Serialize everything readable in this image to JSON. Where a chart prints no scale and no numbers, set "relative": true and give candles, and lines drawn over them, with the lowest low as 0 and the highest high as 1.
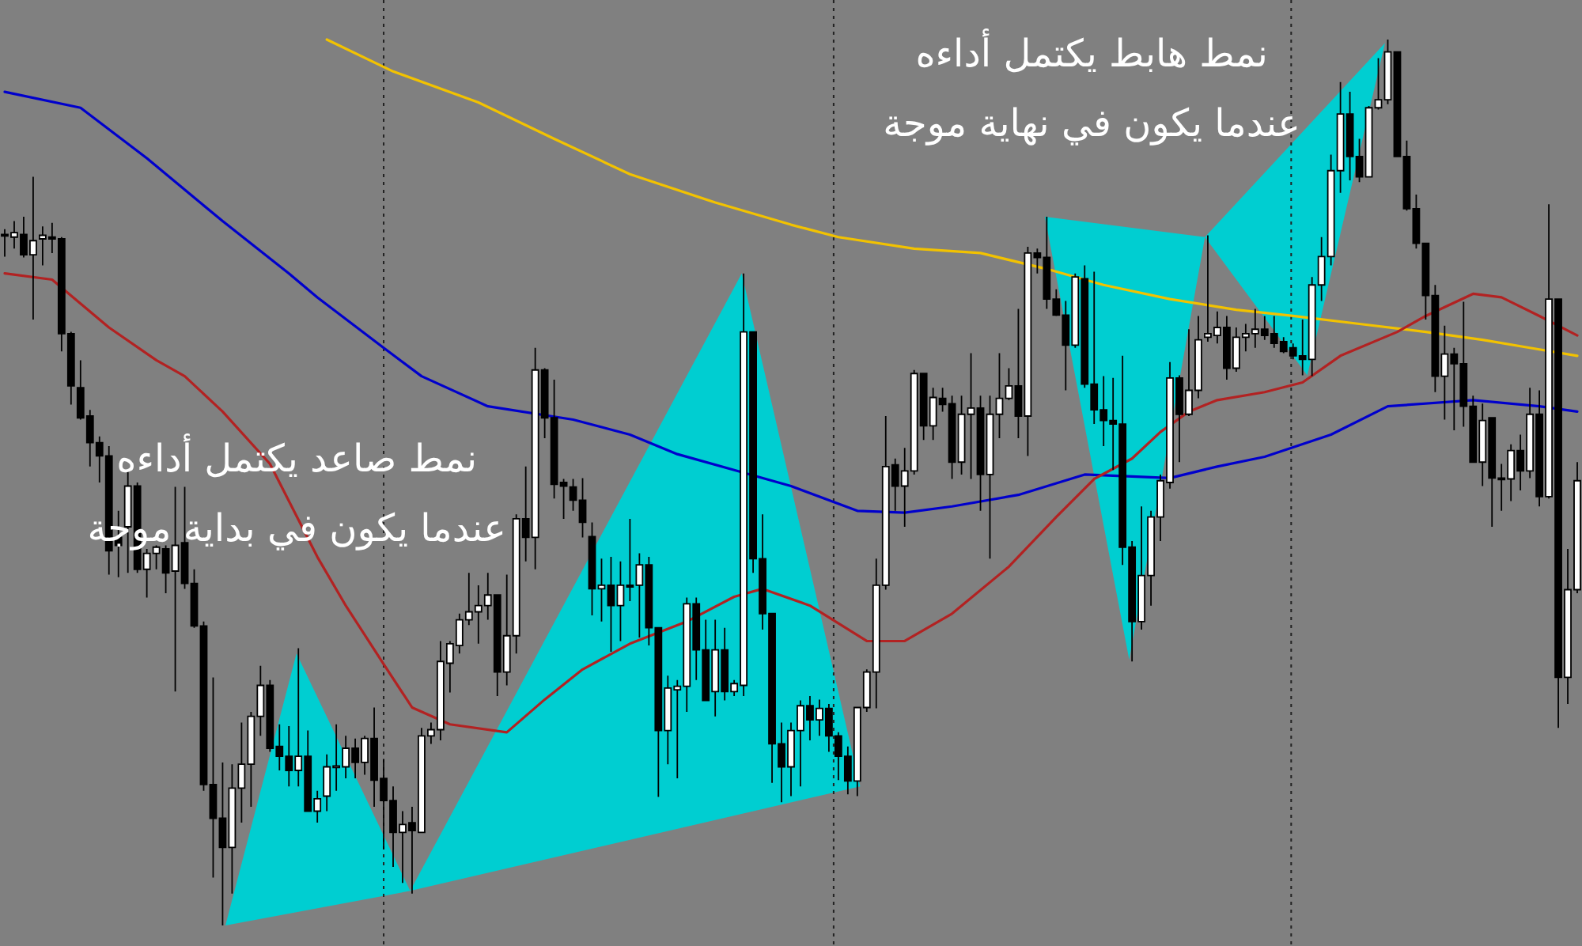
{
  "chart_data": {
    "type": "candlestick",
    "relative": true,
    "categories": [
      null,
      null,
      null,
      null,
      null,
      null,
      null,
      null,
      null,
      null,
      null,
      null,
      null,
      null,
      null,
      null,
      null,
      null,
      null,
      null,
      null,
      null,
      null,
      null,
      null,
      null,
      null,
      null,
      null,
      null,
      null,
      null,
      null,
      null,
      null,
      null,
      null,
      null,
      null,
      null,
      null,
      null,
      null,
      null,
      null,
      null,
      null,
      null,
      null,
      null,
      null,
      null,
      null,
      null,
      null,
      null,
      null,
      null,
      null,
      null,
      null,
      null,
      null,
      null,
      null,
      null,
      null,
      null,
      null,
      null,
      null,
      null,
      null,
      null,
      null,
      null,
      null,
      null,
      null,
      null,
      null,
      null,
      null,
      null,
      null,
      null,
      null,
      null,
      null,
      null,
      null,
      null,
      null,
      null,
      null,
      null,
      null,
      null,
      null,
      null,
      null,
      null,
      null,
      null,
      null,
      null,
      null,
      null,
      null,
      null,
      null,
      null,
      null,
      null,
      null,
      null,
      null,
      null,
      null,
      null,
      null,
      null,
      null,
      null,
      null,
      null,
      null,
      null,
      null,
      null,
      null,
      null,
      null,
      null,
      null,
      null,
      null,
      null,
      null,
      null,
      null,
      null,
      null,
      null,
      null,
      null,
      null,
      null,
      null,
      null,
      null,
      null,
      null,
      null,
      null,
      null,
      null,
      null,
      null,
      null,
      null,
      null,
      null,
      null,
      null,
      null,
      null
    ],
    "ohlc": [
      [
        0.78,
        0.786,
        0.755,
        0.779
      ],
      [
        0.777,
        0.795,
        0.764,
        0.782
      ],
      [
        0.78,
        0.8,
        0.754,
        0.757
      ],
      [
        0.757,
        0.845,
        0.684,
        0.773
      ],
      [
        0.775,
        0.789,
        0.745,
        0.779
      ],
      [
        0.777,
        0.793,
        0.759,
        0.775
      ],
      [
        0.775,
        0.777,
        0.648,
        0.668
      ],
      [
        0.668,
        0.67,
        0.588,
        0.609
      ],
      [
        0.607,
        0.638,
        0.571,
        0.573
      ],
      [
        0.575,
        0.582,
        0.518,
        0.545
      ],
      [
        0.545,
        0.552,
        0.5,
        0.53
      ],
      [
        0.53,
        0.541,
        0.396,
        0.423
      ],
      [
        0.438,
        0.468,
        0.393,
        0.429
      ],
      [
        0.45,
        0.514,
        0.398,
        0.496
      ],
      [
        0.496,
        0.5,
        0.398,
        0.402
      ],
      [
        0.402,
        0.425,
        0.37,
        0.42
      ],
      [
        0.42,
        0.429,
        0.402,
        0.427
      ],
      [
        0.425,
        0.429,
        0.375,
        0.398
      ],
      [
        0.4,
        0.495,
        0.264,
        0.429
      ],
      [
        0.432,
        0.495,
        0.38,
        0.386
      ],
      [
        0.386,
        0.402,
        0.336,
        0.338
      ],
      [
        0.338,
        0.343,
        0.152,
        0.159
      ],
      [
        0.159,
        0.28,
        0.054,
        0.121
      ],
      [
        0.121,
        0.184,
        0,
        0.088
      ],
      [
        0.088,
        0.182,
        0.036,
        0.155
      ],
      [
        0.155,
        0.229,
        0.116,
        0.182
      ],
      [
        0.182,
        0.241,
        0.134,
        0.236
      ],
      [
        0.236,
        0.293,
        0.214,
        0.271
      ],
      [
        0.271,
        0.277,
        0.196,
        0.2
      ],
      [
        0.202,
        0.227,
        0.175,
        0.191
      ],
      [
        0.191,
        0.225,
        0.157,
        0.175
      ],
      [
        0.175,
        0.313,
        0.157,
        0.191
      ],
      [
        0.191,
        0.22,
        0.129,
        0.129
      ],
      [
        0.129,
        0.152,
        0.116,
        0.143
      ],
      [
        0.146,
        0.193,
        0.129,
        0.179
      ],
      [
        0.179,
        0.227,
        0.152,
        0.18
      ],
      [
        0.179,
        0.214,
        0.166,
        0.2
      ],
      [
        0.2,
        0.211,
        0.166,
        0.184
      ],
      [
        0.184,
        0.214,
        0.17,
        0.211
      ],
      [
        0.211,
        0.246,
        0.134,
        0.164
      ],
      [
        0.166,
        0.188,
        0.086,
        0.141
      ],
      [
        0.141,
        0.157,
        0.066,
        0.105
      ],
      [
        0.105,
        0.129,
        0.048,
        0.114
      ],
      [
        0.116,
        0.134,
        0.036,
        0.107
      ],
      [
        0.105,
        0.223,
        0.105,
        0.214
      ],
      [
        0.214,
        0.229,
        0.205,
        0.221
      ],
      [
        0.221,
        0.321,
        0.209,
        0.298
      ],
      [
        0.296,
        0.321,
        0.263,
        0.318
      ],
      [
        0.316,
        0.352,
        0.307,
        0.345
      ],
      [
        0.345,
        0.398,
        0.339,
        0.354
      ],
      [
        0.354,
        0.384,
        0.318,
        0.361
      ],
      [
        0.361,
        0.398,
        0.345,
        0.373
      ],
      [
        0.373,
        0.373,
        0.259,
        0.286
      ],
      [
        0.286,
        0.396,
        0.271,
        0.327
      ],
      [
        0.327,
        0.464,
        0.307,
        0.459
      ],
      [
        0.459,
        0.518,
        0.411,
        0.438
      ],
      [
        0.438,
        0.652,
        0.402,
        0.627
      ],
      [
        0.627,
        0.629,
        0.55,
        0.573
      ],
      [
        0.573,
        0.616,
        0.482,
        0.498
      ],
      [
        0.5,
        0.504,
        0.459,
        0.496
      ],
      [
        0.495,
        0.504,
        0.468,
        0.48
      ],
      [
        0.48,
        0.505,
        0.438,
        0.455
      ],
      [
        0.439,
        0.455,
        0.35,
        0.38
      ],
      [
        0.38,
        0.414,
        0.343,
        0.384
      ],
      [
        0.384,
        0.416,
        0.309,
        0.361
      ],
      [
        0.361,
        0.411,
        0.321,
        0.384
      ],
      [
        0.384,
        0.459,
        0.366,
        0.382
      ],
      [
        0.384,
        0.42,
        0.325,
        0.407
      ],
      [
        0.407,
        0.416,
        0.316,
        0.336
      ],
      [
        0.336,
        0.336,
        0.145,
        0.22
      ],
      [
        0.22,
        0.282,
        0.182,
        0.268
      ],
      [
        0.266,
        0.277,
        0.166,
        0.27
      ],
      [
        0.27,
        0.37,
        0.241,
        0.363
      ],
      [
        0.363,
        0.37,
        0.277,
        0.311
      ],
      [
        0.311,
        0.345,
        0.254,
        0.254
      ],
      [
        0.264,
        0.345,
        0.236,
        0.311
      ],
      [
        0.311,
        0.336,
        0.254,
        0.264
      ],
      [
        0.264,
        0.277,
        0.259,
        0.273
      ],
      [
        0.271,
        0.736,
        0.259,
        0.67
      ],
      [
        0.67,
        0.67,
        0.398,
        0.414
      ],
      [
        0.414,
        0.464,
        0.334,
        0.352
      ],
      [
        0.352,
        0.352,
        0.161,
        0.205
      ],
      [
        0.205,
        0.229,
        0.139,
        0.179
      ],
      [
        0.179,
        0.229,
        0.146,
        0.22
      ],
      [
        0.22,
        0.254,
        0.157,
        0.248
      ],
      [
        0.248,
        0.259,
        0.209,
        0.232
      ],
      [
        0.232,
        0.255,
        0.214,
        0.245
      ],
      [
        0.245,
        0.25,
        0.196,
        0.214
      ],
      [
        0.214,
        0.218,
        0.164,
        0.191
      ],
      [
        0.191,
        0.202,
        0.148,
        0.163
      ],
      [
        0.163,
        0.246,
        0.146,
        0.246
      ],
      [
        0.246,
        0.289,
        0.241,
        0.286
      ],
      [
        0.286,
        0.414,
        0.245,
        0.384
      ],
      [
        0.384,
        0.575,
        0.379,
        0.518
      ],
      [
        0.52,
        0.527,
        0.468,
        0.496
      ],
      [
        0.496,
        0.539,
        0.45,
        0.513
      ],
      [
        0.513,
        0.627,
        0.509,
        0.623
      ],
      [
        0.623,
        0.623,
        0.548,
        0.564
      ],
      [
        0.564,
        0.607,
        0.548,
        0.596
      ],
      [
        0.595,
        0.607,
        0.58,
        0.588
      ],
      [
        0.589,
        0.598,
        0.504,
        0.523
      ],
      [
        0.523,
        0.598,
        0.509,
        0.577
      ],
      [
        0.577,
        0.646,
        0.504,
        0.584
      ],
      [
        0.584,
        0.598,
        0.468,
        0.509
      ],
      [
        0.509,
        0.598,
        0.414,
        0.577
      ],
      [
        0.577,
        0.646,
        0.55,
        0.595
      ],
      [
        0.595,
        0.629,
        0.593,
        0.609
      ],
      [
        0.609,
        0.696,
        0.55,
        0.575
      ],
      [
        0.575,
        0.766,
        0.53,
        0.759
      ],
      [
        0.759,
        0.764,
        0.736,
        0.754
      ],
      [
        0.754,
        0.8,
        0.696,
        0.707
      ],
      [
        0.707,
        0.718,
        0.688,
        0.689
      ],
      [
        0.689,
        0.705,
        0.604,
        0.655
      ],
      [
        0.655,
        0.736,
        0.652,
        0.732
      ],
      [
        0.73,
        0.745,
        0.607,
        0.611
      ],
      [
        0.611,
        0.738,
        0.566,
        0.582
      ],
      [
        0.582,
        0.62,
        0.541,
        0.57
      ],
      [
        0.57,
        0.618,
        0.514,
        0.566
      ],
      [
        0.566,
        0.643,
        0.407,
        0.427
      ],
      [
        0.427,
        0.434,
        0.298,
        0.343
      ],
      [
        0.343,
        0.473,
        0.334,
        0.395
      ],
      [
        0.395,
        0.468,
        0.361,
        0.461
      ],
      [
        0.461,
        0.509,
        0.434,
        0.502
      ],
      [
        0.5,
        0.636,
        0.493,
        0.618
      ],
      [
        0.618,
        0.621,
        0.523,
        0.577
      ],
      [
        0.577,
        0.673,
        0.575,
        0.604
      ],
      [
        0.604,
        0.688,
        0.595,
        0.661
      ],
      [
        0.664,
        0.779,
        0.659,
        0.668
      ],
      [
        0.666,
        0.693,
        0.657,
        0.675
      ],
      [
        0.675,
        0.688,
        0.616,
        0.629
      ],
      [
        0.629,
        0.675,
        0.625,
        0.664
      ],
      [
        0.664,
        0.679,
        0.648,
        0.668
      ],
      [
        0.668,
        0.696,
        0.652,
        0.673
      ],
      [
        0.673,
        0.688,
        0.661,
        0.666
      ],
      [
        0.668,
        0.688,
        0.652,
        0.657
      ],
      [
        0.659,
        0.664,
        0.646,
        0.648
      ],
      [
        0.652,
        0.657,
        0.639,
        0.643
      ],
      [
        0.643,
        0.684,
        0.621,
        0.639
      ],
      [
        0.639,
        0.732,
        0.62,
        0.723
      ],
      [
        0.723,
        0.777,
        0.705,
        0.755
      ],
      [
        0.755,
        0.87,
        0.745,
        0.852
      ],
      [
        0.852,
        0.952,
        0.827,
        0.916
      ],
      [
        0.916,
        0.941,
        0.841,
        0.868
      ],
      [
        0.868,
        0.888,
        0.839,
        0.845
      ],
      [
        0.845,
        0.925,
        0.845,
        0.923
      ],
      [
        0.923,
        0.979,
        0.921,
        0.932
      ],
      [
        0.932,
        1,
        0.927,
        0.986
      ],
      [
        0.986,
        0.986,
        0.868,
        0.868
      ],
      [
        0.868,
        0.886,
        0.807,
        0.809
      ],
      [
        0.809,
        0.825,
        0.764,
        0.77
      ],
      [
        0.77,
        0.77,
        0.684,
        0.711
      ],
      [
        0.711,
        0.723,
        0.602,
        0.62
      ],
      [
        0.62,
        0.677,
        0.571,
        0.645
      ],
      [
        0.645,
        0.652,
        0.559,
        0.634
      ],
      [
        0.634,
        0.704,
        0.563,
        0.586
      ],
      [
        0.586,
        0.598,
        0.523,
        0.523
      ],
      [
        0.523,
        0.589,
        0.496,
        0.57
      ],
      [
        0.573,
        0.573,
        0.45,
        0.505
      ],
      [
        0.505,
        0.521,
        0.468,
        0.504
      ],
      [
        0.504,
        0.543,
        0.479,
        0.536
      ],
      [
        0.536,
        0.554,
        0.491,
        0.513
      ],
      [
        0.513,
        0.607,
        0.505,
        0.577
      ],
      [
        0.577,
        0.604,
        0.473,
        0.484
      ],
      [
        0.484,
        0.814,
        0.482,
        0.707
      ],
      [
        0.707,
        0.707,
        0.223,
        0.28
      ],
      [
        0.28,
        0.425,
        0.25,
        0.379
      ],
      [
        0.379,
        0.523,
        0.375,
        0.502
      ]
    ],
    "series": [
      {
        "type": "line",
        "color": "#f2c200",
        "values": [
          null,
          null,
          null,
          null,
          null,
          null,
          null,
          null,
          null,
          null,
          null,
          null,
          null,
          null,
          null,
          null,
          null,
          null,
          null,
          null,
          null,
          null,
          null,
          null,
          null,
          null,
          null,
          null,
          null,
          null,
          null,
          null,
          null,
          null,
          1.0,
          null,
          null,
          null,
          null,
          null,
          null,
          0.964,
          null,
          null,
          null,
          null,
          null,
          null,
          null,
          null,
          0.929,
          null,
          null,
          null,
          null,
          null,
          null,
          null,
          0.888,
          null,
          null,
          null,
          null,
          null,
          null,
          null,
          0.848,
          null,
          null,
          null,
          null,
          null,
          null,
          null,
          null,
          0.816,
          null,
          null,
          null,
          null,
          null,
          null,
          null,
          0.791,
          null,
          null,
          null,
          null,
          0.777,
          null,
          null,
          null,
          null,
          null,
          null,
          null,
          0.764,
          null,
          null,
          null,
          null,
          null,
          null,
          0.759,
          null,
          null,
          null,
          null,
          null,
          null,
          0.741,
          null,
          null,
          null,
          null,
          null,
          0.723,
          null,
          null,
          null,
          null,
          null,
          null,
          0.707,
          null,
          null,
          null,
          null,
          null,
          null,
          0.695,
          null,
          null,
          null,
          null,
          null,
          0.688,
          null,
          null,
          null,
          null,
          null,
          null,
          0.679,
          null,
          null,
          null,
          null,
          null,
          null,
          0.67,
          null,
          null,
          null,
          null,
          null,
          0.661,
          null,
          null,
          null,
          null,
          0.652,
          null,
          null,
          null,
          null,
          0.643
        ]
      },
      {
        "type": "line",
        "color": "#0000cc",
        "values": [
          0.941,
          null,
          null,
          null,
          null,
          null,
          null,
          null,
          0.923,
          null,
          null,
          null,
          null,
          null,
          null,
          0.866,
          null,
          null,
          null,
          null,
          null,
          null,
          null,
          0.795,
          null,
          null,
          null,
          null,
          null,
          null,
          0.736,
          null,
          null,
          0.709,
          null,
          null,
          null,
          null,
          null,
          null,
          0.652,
          null,
          null,
          null,
          0.62,
          null,
          null,
          null,
          null,
          null,
          null,
          0.586,
          null,
          null,
          null,
          null,
          null,
          null,
          null,
          null,
          0.571,
          null,
          null,
          null,
          null,
          null,
          0.554,
          null,
          null,
          null,
          null,
          0.532,
          null,
          null,
          null,
          null,
          null,
          0.514,
          null,
          null,
          null,
          null,
          null,
          0.496,
          null,
          null,
          null,
          null,
          null,
          null,
          0.468,
          null,
          null,
          null,
          null,
          0.466,
          null,
          null,
          null,
          null,
          0.473,
          null,
          null,
          null,
          null,
          null,
          null,
          0.486,
          null,
          null,
          null,
          null,
          null,
          null,
          0.509,
          null,
          null,
          null,
          null,
          null,
          null,
          null,
          null,
          0.505,
          null,
          null,
          null,
          null,
          0.518,
          null,
          null,
          null,
          null,
          0.529,
          null,
          null,
          null,
          null,
          null,
          null,
          0.554,
          null,
          null,
          null,
          null,
          null,
          0.586,
          null,
          null,
          null,
          null,
          null,
          null,
          null,
          null,
          0.593,
          null,
          null,
          null,
          null,
          null,
          null,
          0.586,
          null,
          null,
          null,
          0.58
        ]
      },
      {
        "type": "line",
        "color": "#b22222",
        "values": [
          0.736,
          null,
          null,
          null,
          null,
          0.729,
          null,
          0.711,
          null,
          null,
          null,
          0.675,
          null,
          null,
          null,
          null,
          0.638,
          null,
          null,
          0.62,
          null,
          null,
          null,
          0.58,
          null,
          null,
          null,
          null,
          0.521,
          null,
          null,
          null,
          null,
          0.416,
          null,
          null,
          0.361,
          null,
          null,
          null,
          0.295,
          null,
          null,
          0.246,
          null,
          null,
          null,
          0.227,
          null,
          null,
          null,
          null,
          null,
          0.218,
          null,
          null,
          null,
          0.255,
          null,
          null,
          null,
          0.289,
          null,
          null,
          null,
          null,
          0.318,
          null,
          null,
          null,
          null,
          null,
          0.343,
          null,
          null,
          null,
          null,
          0.371,
          null,
          null,
          0.38,
          null,
          null,
          null,
          null,
          0.361,
          null,
          null,
          null,
          null,
          null,
          0.321,
          null,
          null,
          null,
          0.321,
          null,
          null,
          null,
          null,
          0.352,
          null,
          null,
          null,
          null,
          null,
          0.405,
          null,
          null,
          null,
          null,
          0.461,
          null,
          null,
          null,
          0.504,
          null,
          null,
          null,
          0.527,
          null,
          null,
          0.557,
          null,
          null,
          0.58,
          null,
          null,
          0.593,
          null,
          null,
          null,
          null,
          0.602,
          null,
          null,
          null,
          0.613,
          null,
          null,
          null,
          0.643,
          null,
          null,
          null,
          null,
          null,
          0.67,
          null,
          null,
          0.688,
          null,
          null,
          null,
          null,
          0.713,
          null,
          null,
          0.709,
          null,
          null,
          null,
          0.688,
          null,
          null,
          null,
          0.666
        ]
      }
    ],
    "annotations": [
      "نمط صاعد يكتمل أداءه\nعندما يكون في بداية موجة",
      "نمط هابط يكتمل أداءه\nعندما يكون في نهاية موجة"
    ]
  }
}
